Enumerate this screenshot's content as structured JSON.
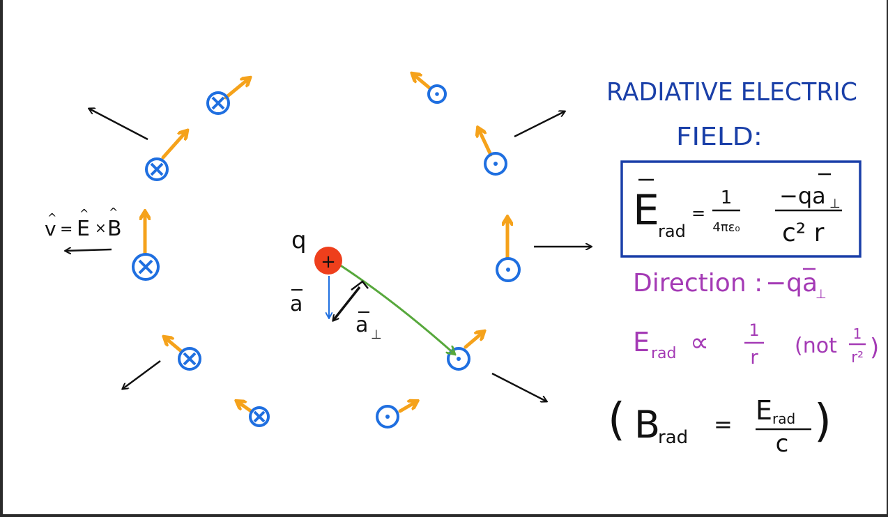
{
  "colors": {
    "blue": "#1f6fe0",
    "title_blue": "#1a3fa8",
    "orange": "#f5a21b",
    "green": "#57a83c",
    "purple": "#a43ab5",
    "red": "#ee3f1c",
    "black": "#111111"
  },
  "title": {
    "line1": "RADIATIVE ELECTRIC",
    "line2": "FIELD:"
  },
  "formula": {
    "E": "E",
    "rad": "rad",
    "equals": "=",
    "num1": "1",
    "den1": "4πε₀",
    "num2": "−qa",
    "perp": "⊥",
    "den2": "c² r"
  },
  "direction": {
    "label": "Direction :",
    "expr": "−qa",
    "perp": "⊥"
  },
  "proportional": {
    "E": "E",
    "rad": "rad",
    "prop": "∝",
    "num": "1",
    "den": "r",
    "not_open": "(not",
    "not_num": "1",
    "not_den": "r²",
    "close": ")"
  },
  "b_relation": {
    "open": "(",
    "B": "B",
    "rad": "rad",
    "equals": "=",
    "num_E": "E",
    "num_rad": "rad",
    "den": "c",
    "close": ")"
  },
  "poynting": {
    "v": "v",
    "eq": "=",
    "E": "E",
    "times": "×",
    "B": "B",
    "hat": "^"
  },
  "charge": {
    "q": "q",
    "sign": "+",
    "a": "a",
    "a_perp": "a",
    "perp": "⊥"
  },
  "symbols": {
    "into_page": "⊗",
    "out_of_page": "⊙"
  }
}
